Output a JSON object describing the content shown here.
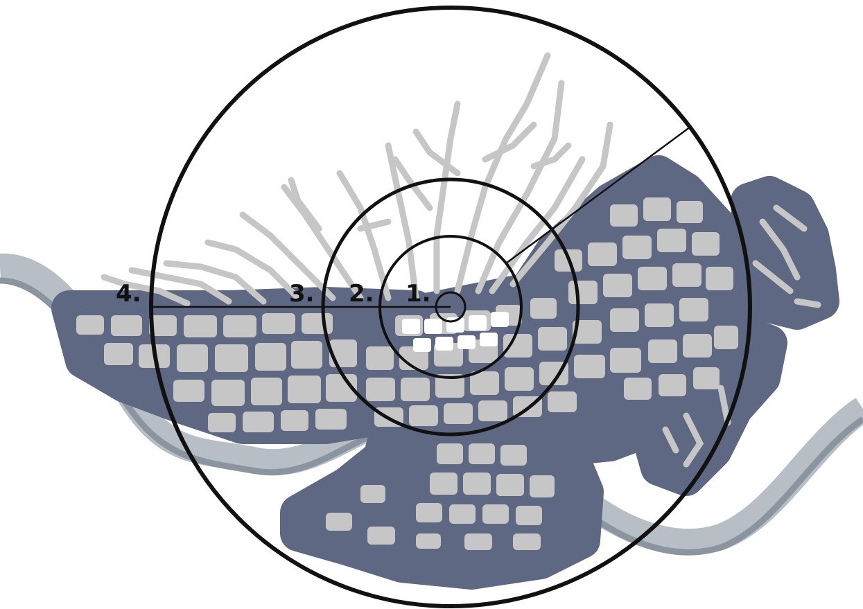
{
  "map": {
    "ring_labels": [
      "1.",
      "2.",
      "3.",
      "4."
    ],
    "colors": {
      "background": "#ffffff",
      "river_outer": "#b7bec6",
      "river_inner": "#8b959f",
      "urban_buffer": "#5e6883",
      "built_fabric": "#c6c6c6",
      "rings": "#111111"
    },
    "layers": [
      "river",
      "urban-buffer-zone",
      "built-fabric",
      "concentric-rings",
      "radius-lines",
      "ring-labels"
    ]
  }
}
